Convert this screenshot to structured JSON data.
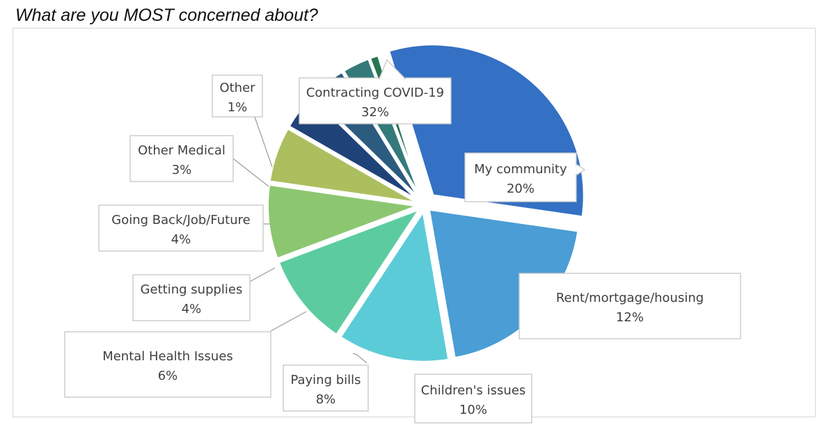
{
  "chart_data": {
    "type": "pie",
    "title": "What are you MOST concerned about?",
    "slices": [
      {
        "label": "Contracting COVID-19",
        "value": 32,
        "display": "32%",
        "color": "#3470c4"
      },
      {
        "label": "My community",
        "value": 20,
        "display": "20%",
        "color": "#4a9dd5"
      },
      {
        "label": "Rent/mortgage/housing",
        "value": 12,
        "display": "12%",
        "color": "#5ccbd8"
      },
      {
        "label": "Children's issues",
        "value": 10,
        "display": "10%",
        "color": "#5ccca0"
      },
      {
        "label": "Paying bills",
        "value": 8,
        "display": "8%",
        "color": "#8dc670"
      },
      {
        "label": "Mental Health Issues",
        "value": 6,
        "display": "6%",
        "color": "#acbf5f"
      },
      {
        "label": "Getting supplies",
        "value": 4,
        "display": "4%",
        "color": "#1f4279"
      },
      {
        "label": "Going Back/Job/Future",
        "value": 4,
        "display": "4%",
        "color": "#2c5b80"
      },
      {
        "label": "Other Medical",
        "value": 3,
        "display": "3%",
        "color": "#357a7b"
      },
      {
        "label": "Other",
        "value": 1,
        "display": "1%",
        "color": "#287552"
      }
    ]
  }
}
